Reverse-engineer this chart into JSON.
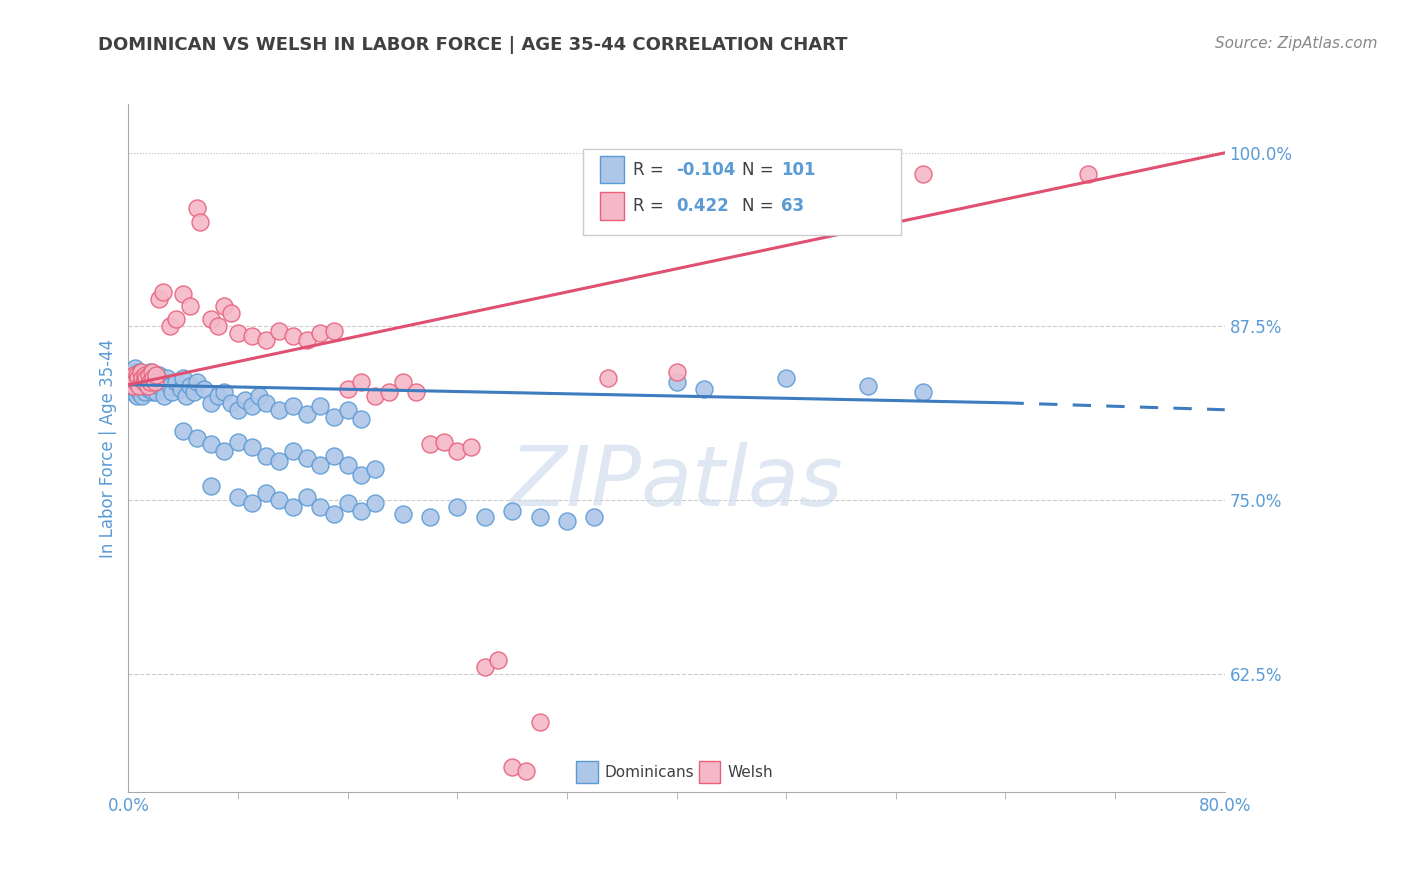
{
  "title": "DOMINICAN VS WELSH IN LABOR FORCE | AGE 35-44 CORRELATION CHART",
  "source": "Source: ZipAtlas.com",
  "ylabel": "In Labor Force | Age 35-44",
  "xlim": [
    0.0,
    0.8
  ],
  "ylim": [
    0.54,
    1.035
  ],
  "dominican_R": -0.104,
  "dominican_N": 101,
  "welsh_R": 0.422,
  "welsh_N": 63,
  "dominican_color": "#aec6e8",
  "welsh_color": "#f5b8c8",
  "dominican_edge_color": "#5b9bd5",
  "welsh_edge_color": "#e8617a",
  "dominican_line_color": "#3d7cbf",
  "welsh_line_color": "#e05070",
  "legend_label_dominicans": "Dominicans",
  "legend_label_welsh": "Welsh",
  "watermark": "ZIPatlas",
  "background_color": "#ffffff",
  "grid_color": "#cccccc",
  "title_color": "#404040",
  "axis_label_color": "#5b9bd5",
  "legend_R_color": "#5b9bd5",
  "dominican_points": [
    [
      0.001,
      0.835
    ],
    [
      0.002,
      0.838
    ],
    [
      0.002,
      0.832
    ],
    [
      0.003,
      0.84
    ],
    [
      0.003,
      0.828
    ],
    [
      0.004,
      0.836
    ],
    [
      0.004,
      0.842
    ],
    [
      0.005,
      0.83
    ],
    [
      0.005,
      0.845
    ],
    [
      0.006,
      0.838
    ],
    [
      0.006,
      0.825
    ],
    [
      0.007,
      0.84
    ],
    [
      0.007,
      0.833
    ],
    [
      0.008,
      0.828
    ],
    [
      0.008,
      0.842
    ],
    [
      0.009,
      0.835
    ],
    [
      0.01,
      0.838
    ],
    [
      0.01,
      0.825
    ],
    [
      0.011,
      0.84
    ],
    [
      0.011,
      0.832
    ],
    [
      0.012,
      0.836
    ],
    [
      0.012,
      0.828
    ],
    [
      0.013,
      0.84
    ],
    [
      0.013,
      0.832
    ],
    [
      0.014,
      0.838
    ],
    [
      0.015,
      0.83
    ],
    [
      0.016,
      0.842
    ],
    [
      0.017,
      0.835
    ],
    [
      0.018,
      0.828
    ],
    [
      0.018,
      0.84
    ],
    [
      0.019,
      0.833
    ],
    [
      0.02,
      0.836
    ],
    [
      0.02,
      0.828
    ],
    [
      0.022,
      0.84
    ],
    [
      0.023,
      0.832
    ],
    [
      0.025,
      0.835
    ],
    [
      0.026,
      0.825
    ],
    [
      0.028,
      0.838
    ],
    [
      0.03,
      0.832
    ],
    [
      0.032,
      0.828
    ],
    [
      0.035,
      0.835
    ],
    [
      0.038,
      0.83
    ],
    [
      0.04,
      0.838
    ],
    [
      0.042,
      0.825
    ],
    [
      0.045,
      0.832
    ],
    [
      0.048,
      0.828
    ],
    [
      0.05,
      0.835
    ],
    [
      0.055,
      0.83
    ],
    [
      0.06,
      0.82
    ],
    [
      0.065,
      0.825
    ],
    [
      0.07,
      0.828
    ],
    [
      0.075,
      0.82
    ],
    [
      0.08,
      0.815
    ],
    [
      0.085,
      0.822
    ],
    [
      0.09,
      0.818
    ],
    [
      0.095,
      0.825
    ],
    [
      0.1,
      0.82
    ],
    [
      0.11,
      0.815
    ],
    [
      0.12,
      0.818
    ],
    [
      0.13,
      0.812
    ],
    [
      0.14,
      0.818
    ],
    [
      0.15,
      0.81
    ],
    [
      0.16,
      0.815
    ],
    [
      0.17,
      0.808
    ],
    [
      0.04,
      0.8
    ],
    [
      0.05,
      0.795
    ],
    [
      0.06,
      0.79
    ],
    [
      0.07,
      0.785
    ],
    [
      0.08,
      0.792
    ],
    [
      0.09,
      0.788
    ],
    [
      0.1,
      0.782
    ],
    [
      0.11,
      0.778
    ],
    [
      0.12,
      0.785
    ],
    [
      0.13,
      0.78
    ],
    [
      0.14,
      0.775
    ],
    [
      0.15,
      0.782
    ],
    [
      0.16,
      0.775
    ],
    [
      0.17,
      0.768
    ],
    [
      0.18,
      0.772
    ],
    [
      0.06,
      0.76
    ],
    [
      0.08,
      0.752
    ],
    [
      0.09,
      0.748
    ],
    [
      0.1,
      0.755
    ],
    [
      0.11,
      0.75
    ],
    [
      0.12,
      0.745
    ],
    [
      0.13,
      0.752
    ],
    [
      0.14,
      0.745
    ],
    [
      0.15,
      0.74
    ],
    [
      0.16,
      0.748
    ],
    [
      0.17,
      0.742
    ],
    [
      0.18,
      0.748
    ],
    [
      0.2,
      0.74
    ],
    [
      0.22,
      0.738
    ],
    [
      0.24,
      0.745
    ],
    [
      0.26,
      0.738
    ],
    [
      0.28,
      0.742
    ],
    [
      0.3,
      0.738
    ],
    [
      0.32,
      0.735
    ],
    [
      0.34,
      0.738
    ],
    [
      0.4,
      0.835
    ],
    [
      0.42,
      0.83
    ],
    [
      0.48,
      0.838
    ],
    [
      0.54,
      0.832
    ],
    [
      0.58,
      0.828
    ]
  ],
  "welsh_points": [
    [
      0.001,
      0.835
    ],
    [
      0.002,
      0.838
    ],
    [
      0.003,
      0.832
    ],
    [
      0.004,
      0.84
    ],
    [
      0.005,
      0.836
    ],
    [
      0.006,
      0.84
    ],
    [
      0.007,
      0.838
    ],
    [
      0.008,
      0.832
    ],
    [
      0.009,
      0.842
    ],
    [
      0.01,
      0.838
    ],
    [
      0.011,
      0.835
    ],
    [
      0.012,
      0.84
    ],
    [
      0.013,
      0.838
    ],
    [
      0.014,
      0.832
    ],
    [
      0.015,
      0.84
    ],
    [
      0.016,
      0.835
    ],
    [
      0.017,
      0.842
    ],
    [
      0.018,
      0.838
    ],
    [
      0.019,
      0.835
    ],
    [
      0.02,
      0.84
    ],
    [
      0.022,
      0.895
    ],
    [
      0.025,
      0.9
    ],
    [
      0.03,
      0.875
    ],
    [
      0.035,
      0.88
    ],
    [
      0.04,
      0.898
    ],
    [
      0.045,
      0.89
    ],
    [
      0.05,
      0.96
    ],
    [
      0.052,
      0.95
    ],
    [
      0.06,
      0.88
    ],
    [
      0.065,
      0.875
    ],
    [
      0.07,
      0.89
    ],
    [
      0.075,
      0.885
    ],
    [
      0.08,
      0.87
    ],
    [
      0.09,
      0.868
    ],
    [
      0.1,
      0.865
    ],
    [
      0.11,
      0.872
    ],
    [
      0.12,
      0.868
    ],
    [
      0.13,
      0.865
    ],
    [
      0.14,
      0.87
    ],
    [
      0.15,
      0.872
    ],
    [
      0.16,
      0.83
    ],
    [
      0.17,
      0.835
    ],
    [
      0.18,
      0.825
    ],
    [
      0.19,
      0.828
    ],
    [
      0.2,
      0.835
    ],
    [
      0.21,
      0.828
    ],
    [
      0.22,
      0.79
    ],
    [
      0.23,
      0.792
    ],
    [
      0.24,
      0.785
    ],
    [
      0.25,
      0.788
    ],
    [
      0.26,
      0.63
    ],
    [
      0.27,
      0.635
    ],
    [
      0.28,
      0.558
    ],
    [
      0.29,
      0.555
    ],
    [
      0.3,
      0.59
    ],
    [
      0.35,
      0.838
    ],
    [
      0.4,
      0.842
    ],
    [
      0.42,
      0.96
    ],
    [
      0.58,
      0.985
    ],
    [
      0.7,
      0.985
    ]
  ]
}
